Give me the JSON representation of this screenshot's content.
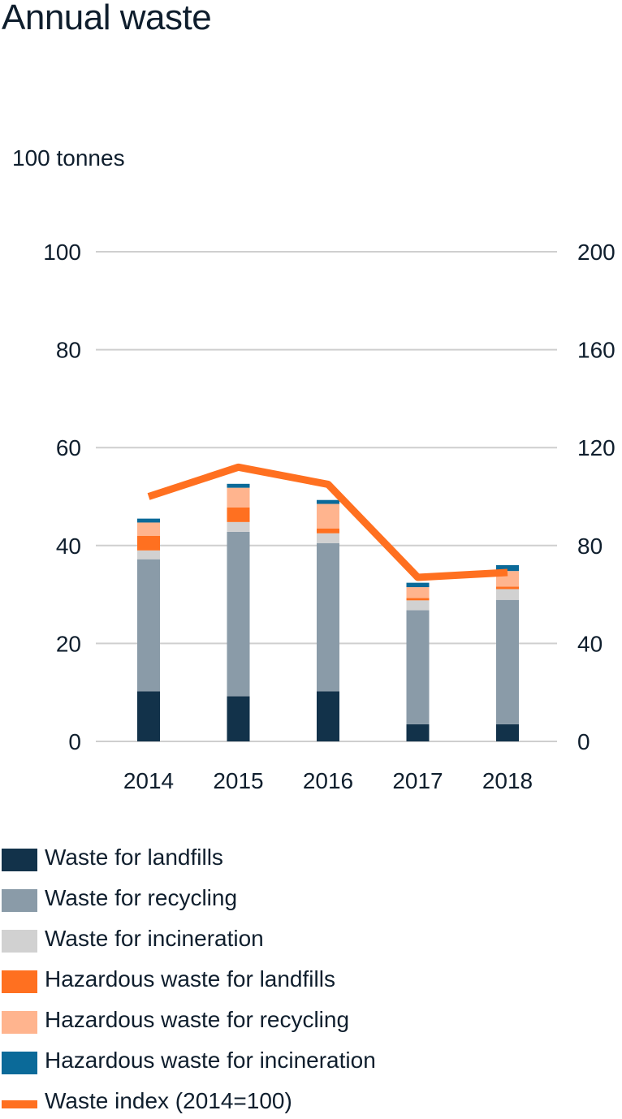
{
  "title": "Annual waste",
  "unit_label": "100 tonnes",
  "chart_data": {
    "type": "bar",
    "stacked": true,
    "title": "Annual waste",
    "ylabel": "100 tonnes",
    "categories": [
      "2014",
      "2015",
      "2016",
      "2017",
      "2018"
    ],
    "ylim": [
      0,
      100
    ],
    "yticks": [
      "0",
      "20",
      "40",
      "60",
      "80",
      "100"
    ],
    "y2lim": [
      0,
      200
    ],
    "y2ticks": [
      "0",
      "40",
      "80",
      "120",
      "160",
      "200"
    ],
    "grid": true,
    "legend_position": "bottom",
    "series": [
      {
        "name": "Waste for landfills",
        "color": "#12324a",
        "values": [
          10.2,
          9.2,
          10.2,
          3.5,
          3.5
        ]
      },
      {
        "name": "Waste for recycling",
        "color": "#8a9ba8",
        "values": [
          27.0,
          33.6,
          30.3,
          23.3,
          25.4
        ]
      },
      {
        "name": "Waste for incineration",
        "color": "#d1d1d1",
        "values": [
          1.8,
          2.0,
          2.0,
          2.0,
          2.2
        ]
      },
      {
        "name": "Hazardous waste for landfills",
        "color": "#ff7020",
        "values": [
          3.0,
          3.0,
          1.0,
          0.5,
          0.5
        ]
      },
      {
        "name": "Hazardous waste for recycling",
        "color": "#ffb48e",
        "values": [
          2.7,
          4.0,
          5.0,
          2.2,
          3.2
        ]
      },
      {
        "name": "Hazardous waste for incineration",
        "color": "#0b6a99",
        "values": [
          0.8,
          0.8,
          0.8,
          0.9,
          1.2
        ]
      }
    ],
    "line_series": {
      "name": "Waste index (2014=100)",
      "color": "#ff7020",
      "axis": "right",
      "values": [
        100,
        112,
        105,
        67,
        69
      ]
    }
  }
}
